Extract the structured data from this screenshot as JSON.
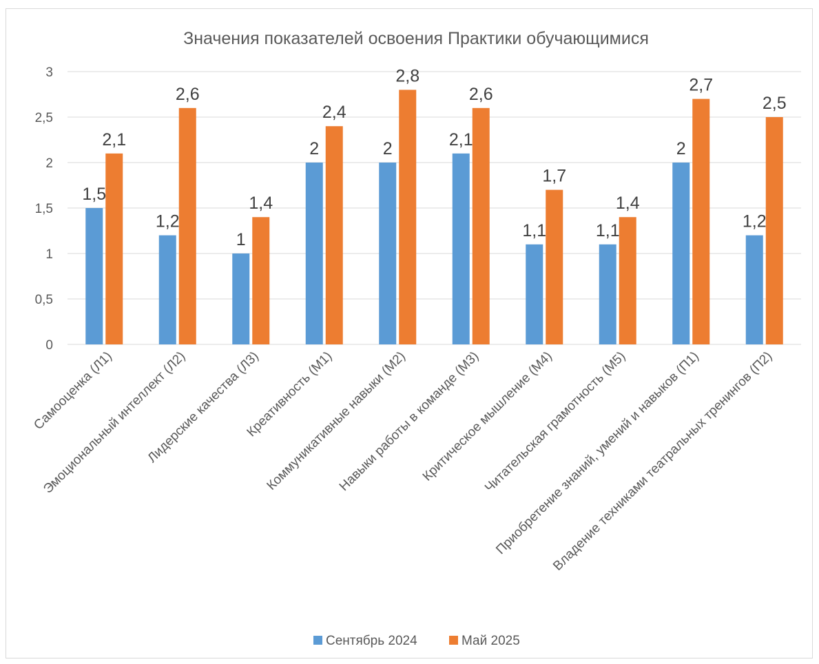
{
  "chart_data": {
    "type": "bar",
    "title": "Значения показателей освоения Практики обучающимися",
    "xlabel": "",
    "ylabel": "",
    "ylim": [
      0,
      3
    ],
    "y_ticks": [
      "0",
      "0,5",
      "1",
      "1,5",
      "2",
      "2,5",
      "3"
    ],
    "grid": true,
    "legend_position": "bottom",
    "categories": [
      "Самооценка (Л1)",
      "Эмоциональный интеллект (Л2)",
      "Лидерские качества (Л3)",
      "Креативность (М1)",
      "Коммуникативные навыки (М2)",
      "Навыки работы в команде (М3)",
      "Критическое мышление (М4)",
      "Читательская грамотность (М5)",
      "Приобретение знаний, умений и навыков (П1)",
      "Владение техниками театральных тренингов (П2)"
    ],
    "series": [
      {
        "name": "Сентябрь 2024",
        "color": "#5b9bd5",
        "values": [
          1.5,
          1.2,
          1,
          2,
          2,
          2.1,
          1.1,
          1.1,
          2,
          1.2
        ],
        "labels": [
          "1,5",
          "1,2",
          "1",
          "2",
          "2",
          "2,1",
          "1,1",
          "1,1",
          "2",
          "1,2"
        ]
      },
      {
        "name": "Май 2025",
        "color": "#ed7d31",
        "values": [
          2.1,
          2.6,
          1.4,
          2.4,
          2.8,
          2.6,
          1.7,
          1.4,
          2.7,
          2.5
        ],
        "labels": [
          "2,1",
          "2,6",
          "1,4",
          "2,4",
          "2,8",
          "2,6",
          "1,7",
          "1,4",
          "2,7",
          "2,5"
        ]
      }
    ]
  }
}
